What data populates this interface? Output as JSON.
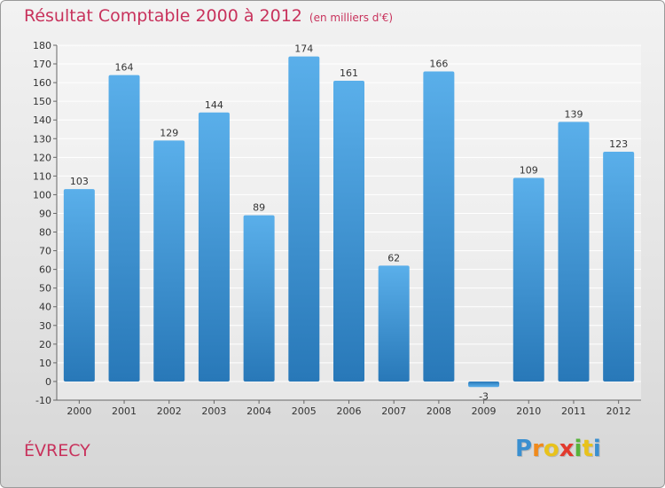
{
  "title": "Résultat Comptable 2000 à 2012",
  "unit": "(en milliers d'€)",
  "commune": "ÉVRECY",
  "logo": {
    "letters": [
      "P",
      "r",
      "o",
      "x",
      "i",
      "t",
      "i"
    ],
    "colors": [
      "#3a8fd0",
      "#f08a1c",
      "#e8c21c",
      "#e23a2e",
      "#58b33a",
      "#e8c21c",
      "#3a8fd0"
    ]
  },
  "colors": {
    "bar_top": "#5aafea",
    "bar_bottom": "#2878b8",
    "title": "#c8325c"
  },
  "chart_data": {
    "type": "bar",
    "categories": [
      "2000",
      "2001",
      "2002",
      "2003",
      "2004",
      "2005",
      "2006",
      "2007",
      "2008",
      "2009",
      "2010",
      "2011",
      "2012"
    ],
    "values": [
      103,
      164,
      129,
      144,
      89,
      174,
      161,
      62,
      166,
      -3,
      109,
      139,
      123
    ],
    "ylim": [
      -10,
      180
    ],
    "yticks": [
      -10,
      0,
      10,
      20,
      30,
      40,
      50,
      60,
      70,
      80,
      90,
      100,
      110,
      120,
      130,
      140,
      150,
      160,
      170,
      180
    ],
    "grid": true
  }
}
